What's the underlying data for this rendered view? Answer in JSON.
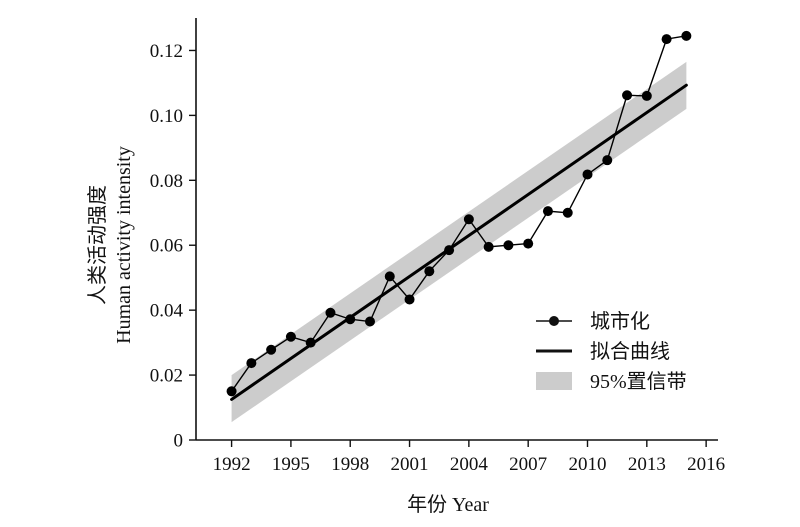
{
  "chart_data": {
    "type": "line",
    "xlabel": "年份 Year",
    "ylabel_cn": "人类活动强度",
    "ylabel_en": "Human activity intensity",
    "xlim": [
      1990.2,
      2016.6
    ],
    "ylim": [
      0,
      0.13
    ],
    "x_ticks": [
      1992,
      1995,
      1998,
      2001,
      2004,
      2007,
      2010,
      2013,
      2016
    ],
    "x_tick_labels": [
      "1992",
      "1995",
      "1998",
      "2001",
      "2004",
      "2007",
      "2010",
      "2013",
      "2016"
    ],
    "y_ticks": [
      0,
      0.02,
      0.04,
      0.06,
      0.08,
      0.1,
      0.12
    ],
    "y_tick_labels": [
      "0",
      "0.02",
      "0.04",
      "0.06",
      "0.08",
      "0.10",
      "0.12"
    ],
    "grid": false,
    "legend_position": "bottom-right",
    "series": [
      {
        "name": "城市化",
        "style": "line-with-markers",
        "color": "#000000",
        "x": [
          1992,
          1993,
          1994,
          1995,
          1996,
          1997,
          1998,
          1999,
          2000,
          2001,
          2002,
          2003,
          2004,
          2005,
          2006,
          2007,
          2008,
          2009,
          2010,
          2011,
          2012,
          2013,
          2014,
          2015
        ],
        "y": [
          0.015,
          0.0237,
          0.0278,
          0.0318,
          0.03,
          0.0392,
          0.0372,
          0.0365,
          0.0504,
          0.0433,
          0.052,
          0.0585,
          0.068,
          0.0595,
          0.06,
          0.0605,
          0.0705,
          0.07,
          0.0818,
          0.0862,
          0.1062,
          0.106,
          0.1235,
          0.1245
        ]
      },
      {
        "name": "拟合曲线",
        "style": "line",
        "color": "#000000",
        "x": [
          1992,
          2015
        ],
        "y": [
          0.0125,
          0.1093
        ]
      },
      {
        "name": "95%置信带",
        "style": "band",
        "color": "#cccccc",
        "x": [
          1992,
          2015
        ],
        "lower": [
          0.0055,
          0.102
        ],
        "upper": [
          0.02,
          0.1165
        ]
      }
    ]
  }
}
